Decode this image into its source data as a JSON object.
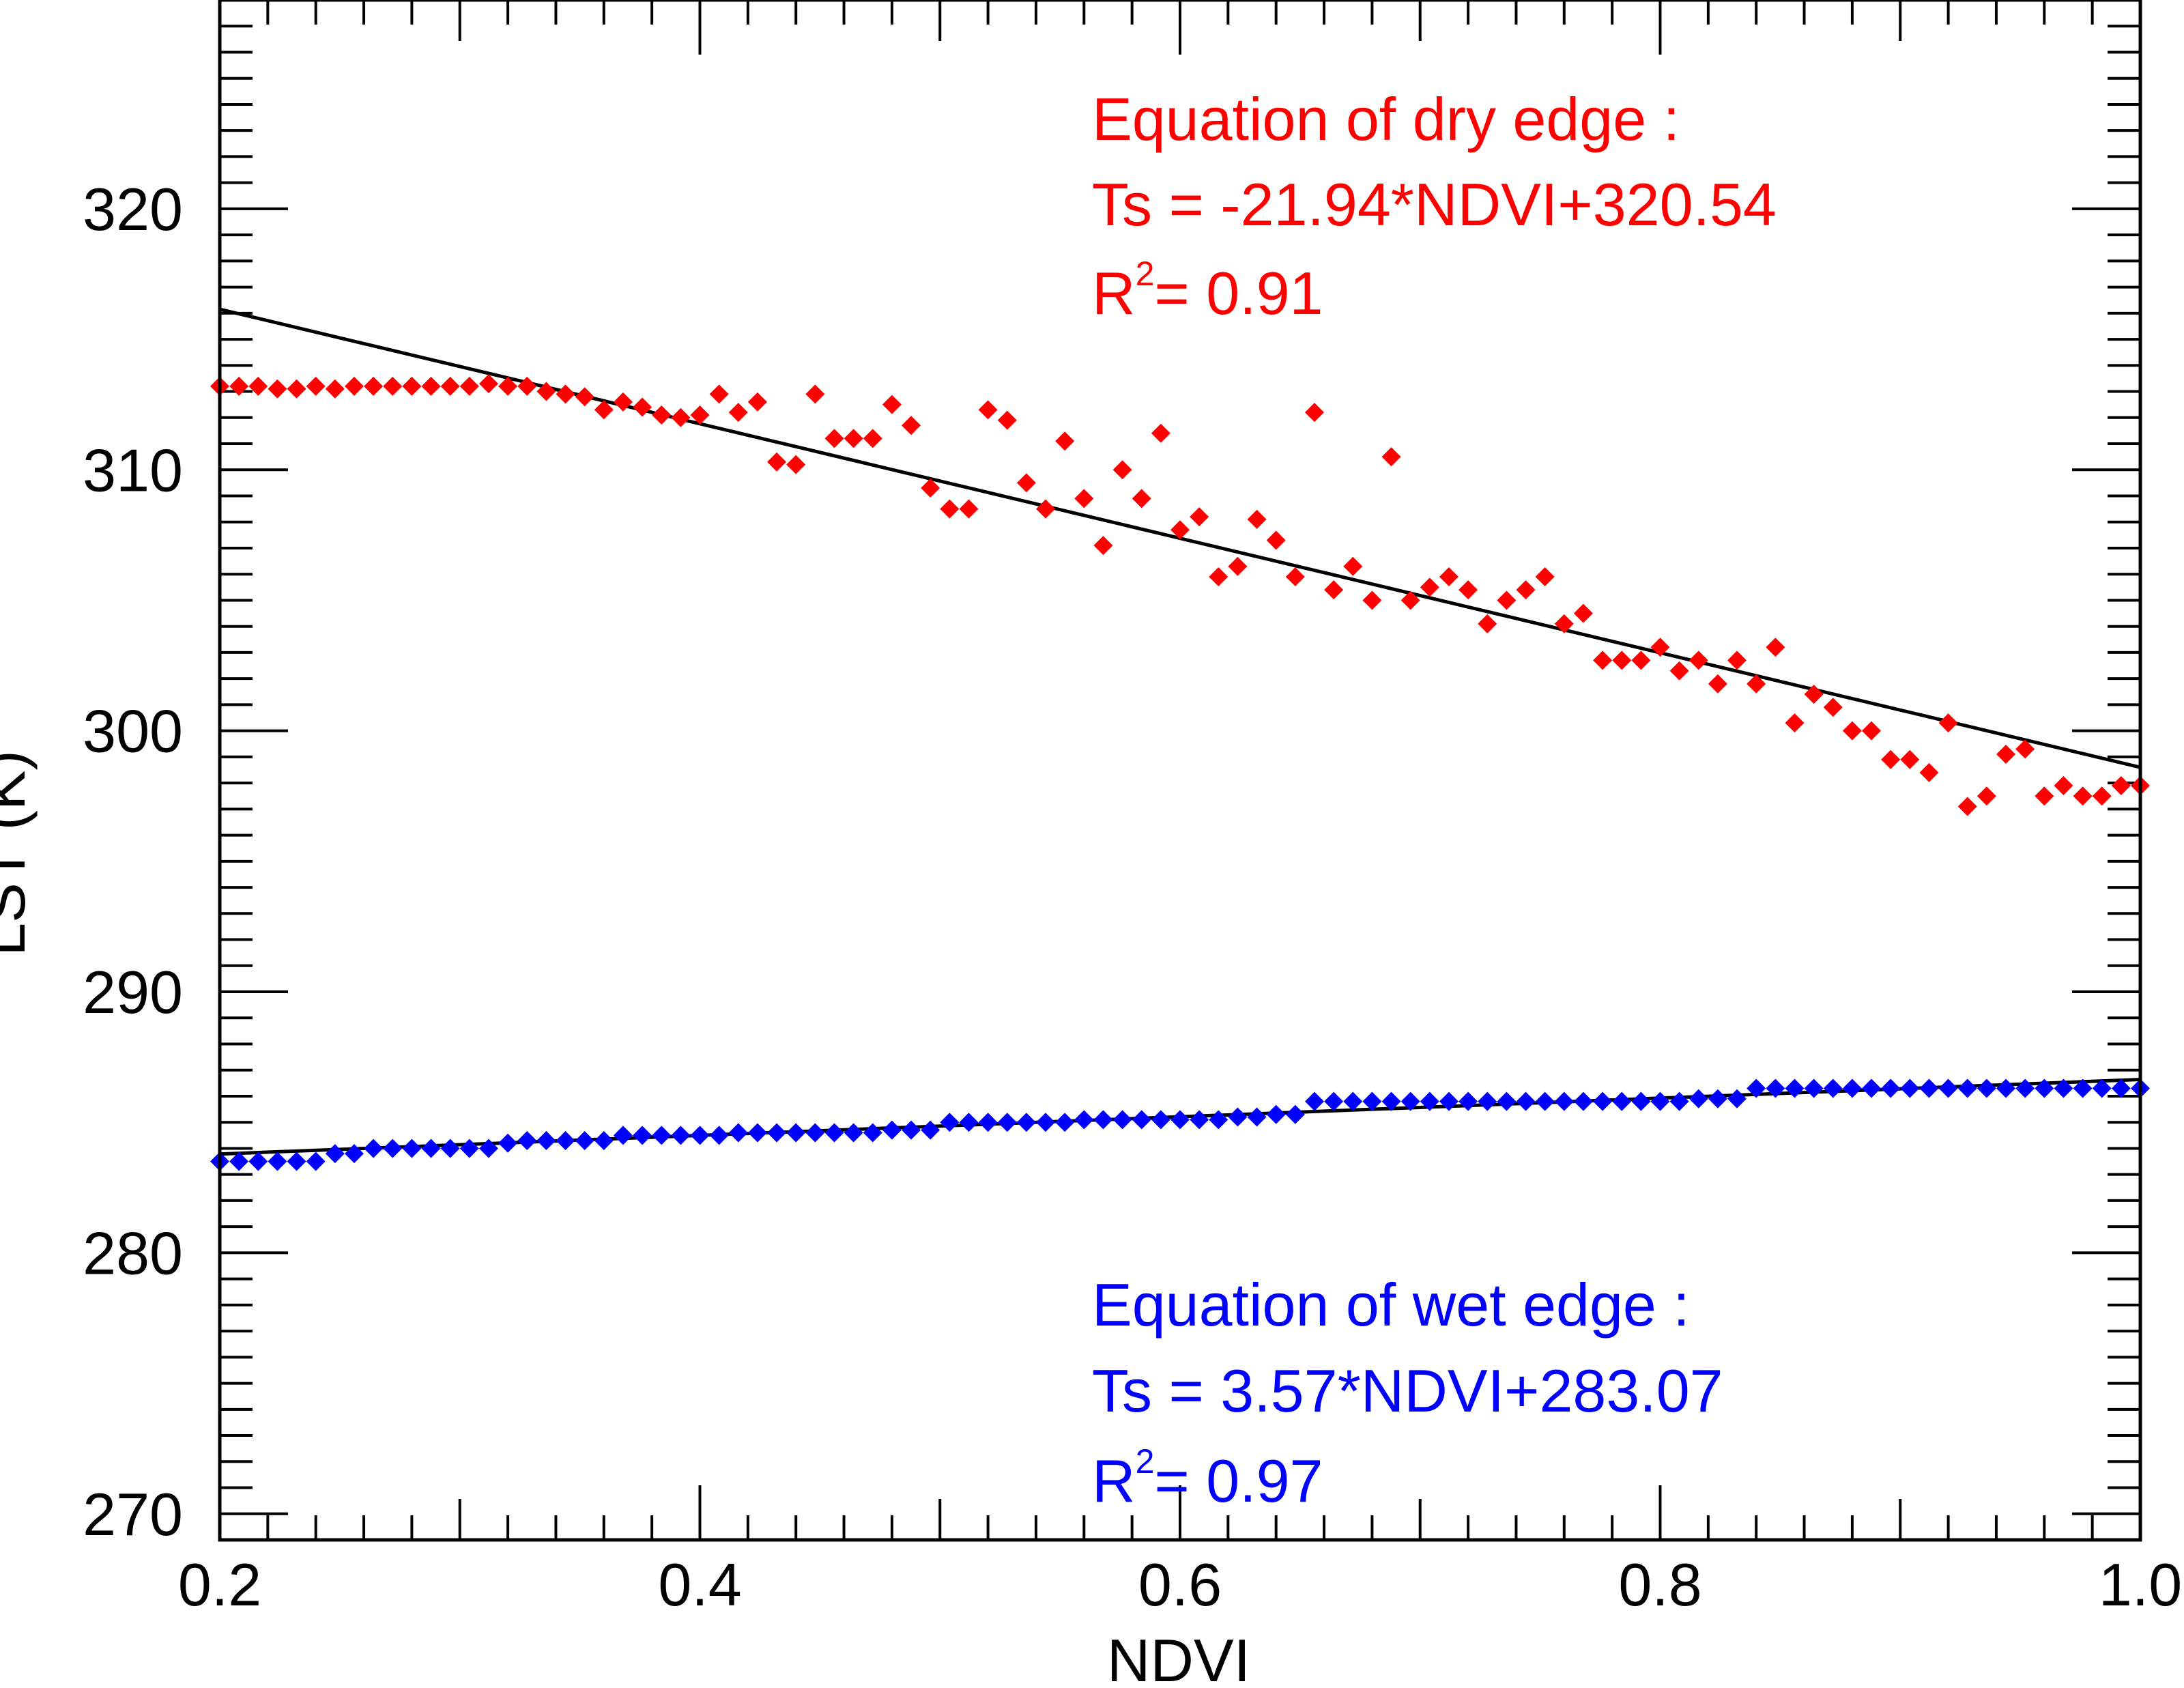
{
  "chart_data": {
    "type": "scatter",
    "xlabel": "NDVI",
    "ylabel": "LST (K)",
    "xlim": [
      0.2,
      1.0
    ],
    "ylim": [
      269,
      328
    ],
    "x_ticks": [
      {
        "value": 0.2,
        "label": "0.2"
      },
      {
        "value": 0.4,
        "label": "0.4"
      },
      {
        "value": 0.6,
        "label": "0.6"
      },
      {
        "value": 0.8,
        "label": "0.8"
      },
      {
        "value": 1.0,
        "label": "1.0"
      }
    ],
    "y_ticks": [
      {
        "value": 270,
        "label": "270"
      },
      {
        "value": 280,
        "label": "280"
      },
      {
        "value": 290,
        "label": "290"
      },
      {
        "value": 300,
        "label": "300"
      },
      {
        "value": 310,
        "label": "310"
      },
      {
        "value": 320,
        "label": "320"
      }
    ],
    "series": [
      {
        "name": "dry edge",
        "color": "#ff0000",
        "marker": "diamond",
        "x": [
          0.2,
          0.208,
          0.216,
          0.224,
          0.232,
          0.24,
          0.248,
          0.256,
          0.264,
          0.272,
          0.28,
          0.288,
          0.296,
          0.304,
          0.312,
          0.32,
          0.328,
          0.336,
          0.344,
          0.352,
          0.36,
          0.368,
          0.376,
          0.384,
          0.392,
          0.4,
          0.408,
          0.416,
          0.424,
          0.432,
          0.44,
          0.448,
          0.456,
          0.464,
          0.472,
          0.48,
          0.488,
          0.496,
          0.504,
          0.512,
          0.52,
          0.528,
          0.536,
          0.544,
          0.552,
          0.56,
          0.568,
          0.576,
          0.584,
          0.592,
          0.6,
          0.608,
          0.616,
          0.624,
          0.632,
          0.64,
          0.648,
          0.656,
          0.664,
          0.672,
          0.68,
          0.688,
          0.696,
          0.704,
          0.712,
          0.72,
          0.728,
          0.736,
          0.744,
          0.752,
          0.76,
          0.768,
          0.776,
          0.784,
          0.792,
          0.8,
          0.808,
          0.816,
          0.824,
          0.832,
          0.84,
          0.848,
          0.856,
          0.864,
          0.872,
          0.88,
          0.888,
          0.896,
          0.904,
          0.912,
          0.92,
          0.928,
          0.936,
          0.944,
          0.952,
          0.96,
          0.968,
          0.976,
          0.984,
          0.992,
          1.0
        ],
        "y": [
          313.2,
          313.2,
          313.2,
          313.1,
          313.1,
          313.2,
          313.1,
          313.2,
          313.2,
          313.2,
          313.2,
          313.2,
          313.2,
          313.2,
          313.3,
          313.2,
          313.2,
          313.0,
          312.9,
          312.8,
          312.3,
          312.6,
          312.4,
          312.1,
          312.0,
          312.1,
          312.9,
          312.2,
          312.6,
          310.3,
          310.2,
          312.9,
          311.2,
          311.2,
          311.2,
          312.5,
          311.7,
          309.3,
          308.5,
          308.5,
          312.3,
          311.9,
          309.5,
          308.5,
          311.1,
          308.9,
          307.1,
          310.0,
          308.9,
          311.4,
          307.7,
          308.2,
          305.9,
          306.3,
          308.1,
          307.3,
          305.9,
          312.2,
          305.4,
          306.3,
          305.0,
          310.5,
          305.0,
          305.5,
          305.9,
          305.4,
          304.1,
          305.0,
          305.4,
          305.9,
          304.1,
          304.5,
          302.7,
          302.7,
          302.7,
          303.2,
          302.3,
          302.7,
          301.8,
          302.7,
          301.8,
          303.2,
          300.3,
          301.4,
          300.9,
          300.0,
          300.0,
          298.9,
          298.9,
          298.4,
          300.3,
          297.1,
          297.5,
          299.1,
          299.3,
          297.5,
          297.9,
          297.5,
          297.5,
          297.9,
          297.9
        ]
      },
      {
        "name": "wet edge",
        "color": "#0000ff",
        "marker": "diamond",
        "x": [
          0.2,
          0.208,
          0.216,
          0.224,
          0.232,
          0.24,
          0.248,
          0.256,
          0.264,
          0.272,
          0.28,
          0.288,
          0.296,
          0.304,
          0.312,
          0.32,
          0.328,
          0.336,
          0.344,
          0.352,
          0.36,
          0.368,
          0.376,
          0.384,
          0.392,
          0.4,
          0.408,
          0.416,
          0.424,
          0.432,
          0.44,
          0.448,
          0.456,
          0.464,
          0.472,
          0.48,
          0.488,
          0.496,
          0.504,
          0.512,
          0.52,
          0.528,
          0.536,
          0.544,
          0.552,
          0.56,
          0.568,
          0.576,
          0.584,
          0.592,
          0.6,
          0.608,
          0.616,
          0.624,
          0.632,
          0.64,
          0.648,
          0.656,
          0.664,
          0.672,
          0.68,
          0.688,
          0.696,
          0.704,
          0.712,
          0.72,
          0.728,
          0.736,
          0.744,
          0.752,
          0.76,
          0.768,
          0.776,
          0.784,
          0.792,
          0.8,
          0.808,
          0.816,
          0.824,
          0.832,
          0.84,
          0.848,
          0.856,
          0.864,
          0.872,
          0.88,
          0.888,
          0.896,
          0.904,
          0.912,
          0.92,
          0.928,
          0.936,
          0.944,
          0.952,
          0.96,
          0.968,
          0.976,
          0.984,
          0.992,
          1.0
        ],
        "y": [
          283.5,
          283.5,
          283.5,
          283.5,
          283.5,
          283.5,
          283.8,
          283.8,
          284.0,
          284.0,
          284.0,
          284.0,
          284.0,
          284.0,
          284.0,
          284.2,
          284.3,
          284.3,
          284.3,
          284.3,
          284.3,
          284.5,
          284.5,
          284.5,
          284.5,
          284.5,
          284.5,
          284.6,
          284.6,
          284.6,
          284.6,
          284.6,
          284.6,
          284.6,
          284.6,
          284.7,
          284.7,
          284.7,
          285.0,
          285.0,
          285.0,
          285.0,
          285.0,
          285.0,
          285.0,
          285.1,
          285.1,
          285.1,
          285.1,
          285.1,
          285.1,
          285.1,
          285.1,
          285.2,
          285.2,
          285.3,
          285.3,
          285.8,
          285.8,
          285.8,
          285.8,
          285.8,
          285.8,
          285.8,
          285.8,
          285.8,
          285.8,
          285.8,
          285.8,
          285.8,
          285.8,
          285.8,
          285.8,
          285.8,
          285.8,
          285.8,
          285.8,
          285.9,
          285.9,
          285.9,
          286.3,
          286.3,
          286.3,
          286.3,
          286.3,
          286.3,
          286.3,
          286.3,
          286.3,
          286.3,
          286.3,
          286.3,
          286.3,
          286.3,
          286.3,
          286.3,
          286.3,
          286.3,
          286.3,
          286.3,
          286.3
        ]
      }
    ],
    "fits": [
      {
        "name": "dry edge fit",
        "slope": -21.94,
        "intercept": 320.54,
        "color": "#000000"
      },
      {
        "name": "wet edge fit",
        "slope": 3.57,
        "intercept": 283.07,
        "color": "#000000"
      }
    ],
    "annotations": {
      "dry": {
        "color": "#ff0000",
        "line1": "Equation of dry edge :",
        "line2": "Ts =  -21.94*NDVI+320.54",
        "r2_prefix": "R",
        "r2_sup": "2",
        "r2_value": "=  0.91"
      },
      "wet": {
        "color": "#0000ff",
        "line1": "Equation of wet edge :",
        "line2": "Ts =    3.57*NDVI+283.07",
        "r2_prefix": "R",
        "r2_sup": "2",
        "r2_value": "=  0.97"
      }
    }
  }
}
